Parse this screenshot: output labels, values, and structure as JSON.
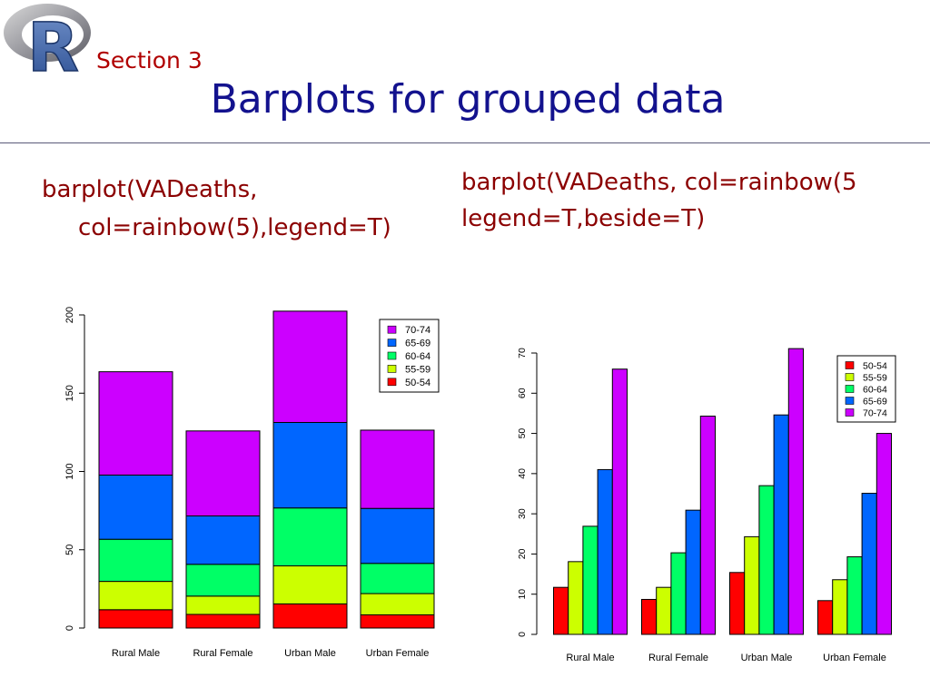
{
  "slide": {
    "section": "Section 3",
    "title": "Barplots for grouped data",
    "logo_letter": "R"
  },
  "code": {
    "left_line1": "barplot(VADeaths,",
    "left_line2": "col=rainbow(5),legend=T)",
    "right_line1": "barplot(VADeaths, col=rainbow(5",
    "right_line2": "legend=T,beside=T)"
  },
  "colors": {
    "50-54": "#ff0000",
    "55-59": "#ccff00",
    "60-64": "#00ff66",
    "65-69": "#0066ff",
    "70-74": "#cc00ff",
    "section_text": "#b00000",
    "title_text": "#13128e",
    "code_text": "#8b0000"
  },
  "chart_data": [
    {
      "type": "bar",
      "stacked": true,
      "categories": [
        "Rural Male",
        "Rural Female",
        "Urban Male",
        "Urban Female"
      ],
      "series": [
        {
          "name": "50-54",
          "values": [
            11.7,
            8.7,
            15.4,
            8.4
          ]
        },
        {
          "name": "55-59",
          "values": [
            18.1,
            11.7,
            24.3,
            13.6
          ]
        },
        {
          "name": "60-64",
          "values": [
            26.9,
            20.3,
            37.0,
            19.3
          ]
        },
        {
          "name": "65-69",
          "values": [
            41.0,
            30.9,
            54.6,
            35.1
          ]
        },
        {
          "name": "70-74",
          "values": [
            66.0,
            54.3,
            71.1,
            50.0
          ]
        }
      ],
      "ylim": [
        0,
        200
      ],
      "yticks": [
        0,
        50,
        100,
        150,
        200
      ],
      "legend": [
        "70-74",
        "65-69",
        "60-64",
        "55-59",
        "50-54"
      ],
      "legend_position": "top-right",
      "grid": false
    },
    {
      "type": "bar",
      "stacked": false,
      "categories": [
        "Rural Male",
        "Rural Female",
        "Urban Male",
        "Urban Female"
      ],
      "series": [
        {
          "name": "50-54",
          "values": [
            11.7,
            8.7,
            15.4,
            8.4
          ]
        },
        {
          "name": "55-59",
          "values": [
            18.1,
            11.7,
            24.3,
            13.6
          ]
        },
        {
          "name": "60-64",
          "values": [
            26.9,
            20.3,
            37.0,
            19.3
          ]
        },
        {
          "name": "65-69",
          "values": [
            41.0,
            30.9,
            54.6,
            35.1
          ]
        },
        {
          "name": "70-74",
          "values": [
            66.0,
            54.3,
            71.1,
            50.0
          ]
        }
      ],
      "ylim": [
        0,
        70
      ],
      "yticks": [
        0,
        10,
        20,
        30,
        40,
        50,
        60,
        70
      ],
      "legend": [
        "50-54",
        "55-59",
        "60-64",
        "65-69",
        "70-74"
      ],
      "legend_position": "top-right",
      "grid": false
    }
  ]
}
